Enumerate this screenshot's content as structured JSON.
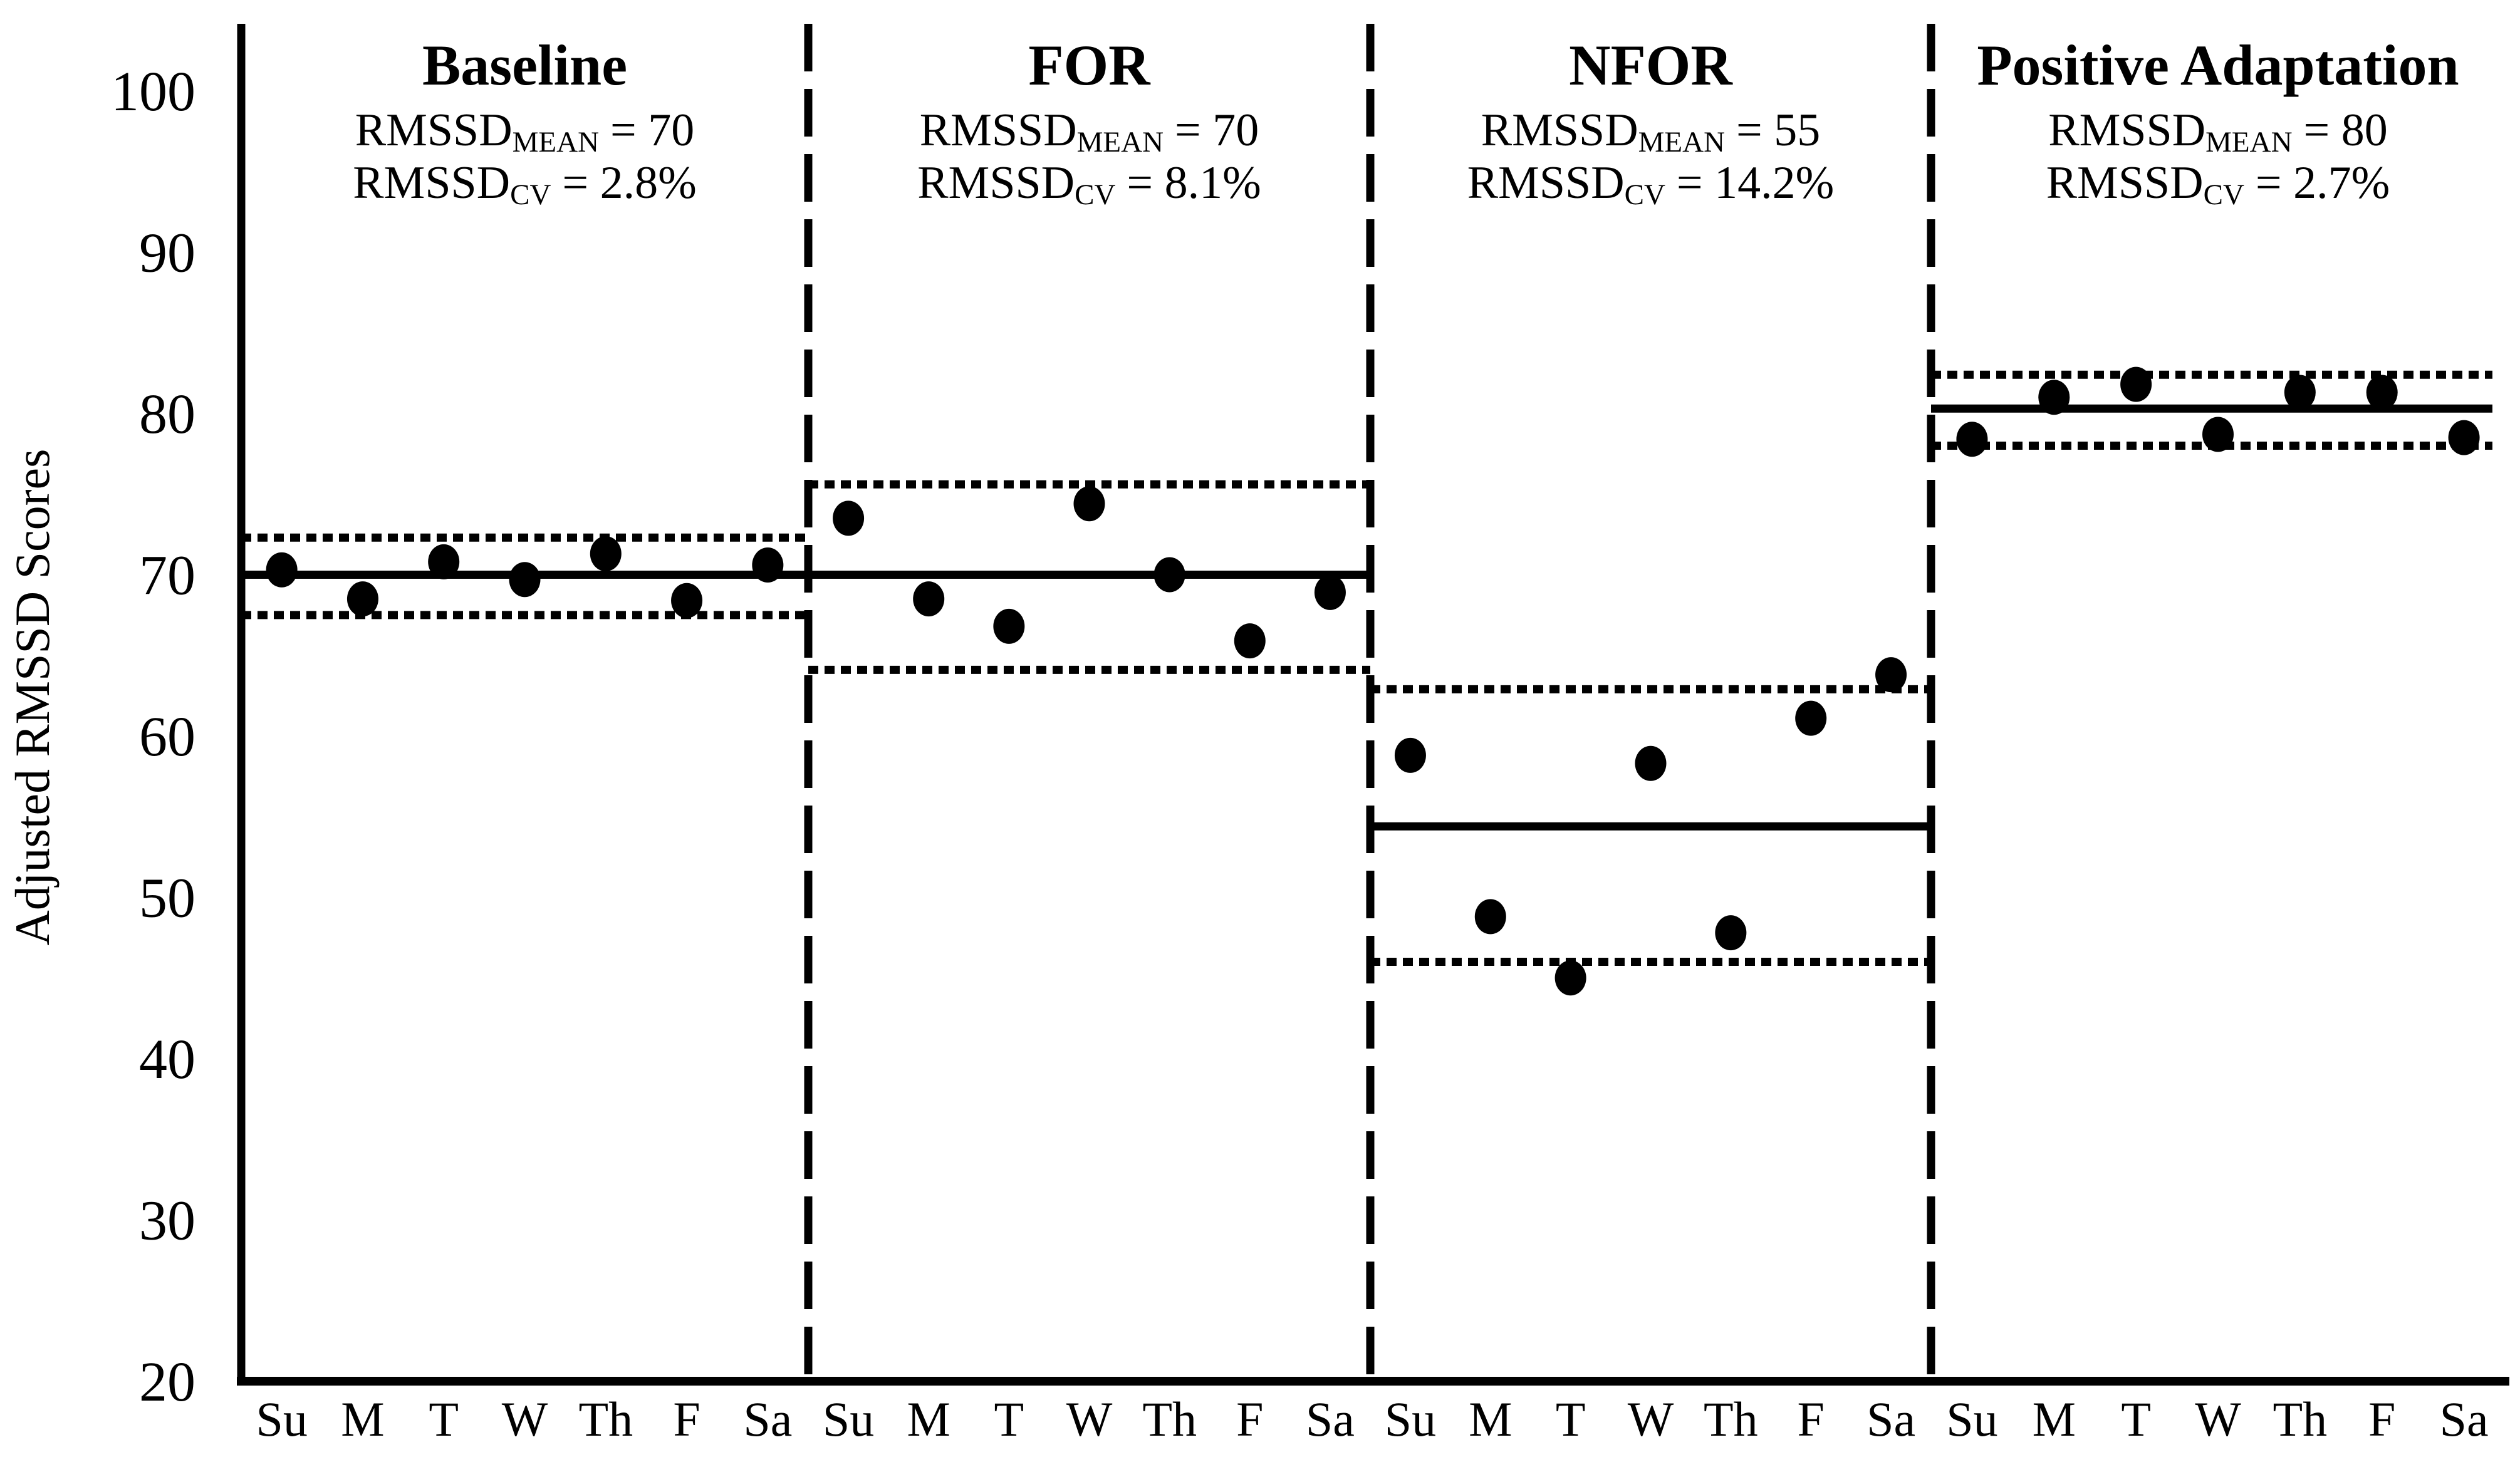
{
  "page": {
    "background": "#ffffff",
    "ink": "#000000"
  },
  "y_axis": {
    "label": "Adjusted RMSSD Scores",
    "min": 20,
    "max": 100,
    "ticks": [
      100,
      90,
      80,
      70,
      60,
      50,
      40,
      30,
      20
    ]
  },
  "x_axis": {
    "days": [
      "Su",
      "M",
      "T",
      "W",
      "Th",
      "F",
      "Sa"
    ]
  },
  "chart_data": {
    "type": "scatter",
    "title": "",
    "ylabel": "Adjusted RMSSD Scores",
    "ylim": [
      20,
      100
    ],
    "grid": false,
    "legend": "none",
    "marker": {
      "shape": "filled-ellipse",
      "color": "#000000"
    },
    "panels": [
      {
        "title": "Baseline",
        "stats": [
          {
            "base": "RMSSD",
            "sub": "MEAN",
            "rest": "= 70"
          },
          {
            "base": "RMSSD",
            "sub": "CV",
            "rest": "= 2.8%"
          }
        ],
        "rmssd_mean": 70,
        "rmssd_cv_percent": 2.8,
        "mean_line": 70,
        "upper_dotted": 72.3,
        "lower_dotted": 67.5,
        "daily_values": [
          70.3,
          68.5,
          70.8,
          69.7,
          71.3,
          68.4,
          70.6
        ]
      },
      {
        "title": "FOR",
        "stats": [
          {
            "base": "RMSSD",
            "sub": "MEAN",
            "rest": "= 70"
          },
          {
            "base": "RMSSD",
            "sub": "CV",
            "rest": "= 8.1%"
          }
        ],
        "rmssd_mean": 70,
        "rmssd_cv_percent": 8.1,
        "mean_line": 70,
        "upper_dotted": 75.6,
        "lower_dotted": 64.1,
        "daily_values": [
          73.5,
          68.5,
          66.8,
          74.4,
          70.0,
          65.9,
          68.9
        ]
      },
      {
        "title": "NFOR",
        "stats": [
          {
            "base": "RMSSD",
            "sub": "MEAN",
            "rest": "= 55"
          },
          {
            "base": "RMSSD",
            "sub": "CV",
            "rest": "= 14.2%"
          }
        ],
        "rmssd_mean": 55,
        "rmssd_cv_percent": 14.2,
        "mean_line": 54.4,
        "upper_dotted": 62.9,
        "lower_dotted": 46.0,
        "daily_values": [
          58.8,
          48.8,
          45.0,
          58.3,
          47.8,
          61.1,
          63.8
        ]
      },
      {
        "title": "Positive Adaptation",
        "stats": [
          {
            "base": "RMSSD",
            "sub": "MEAN",
            "rest": "= 80"
          },
          {
            "base": "RMSSD",
            "sub": "CV",
            "rest": "= 2.7%"
          }
        ],
        "rmssd_mean": 80,
        "rmssd_cv_percent": 2.7,
        "mean_line": 80.3,
        "upper_dotted": 82.4,
        "lower_dotted": 78.0,
        "daily_values": [
          78.4,
          81.0,
          81.8,
          78.7,
          81.3,
          81.3,
          78.5
        ]
      }
    ]
  }
}
